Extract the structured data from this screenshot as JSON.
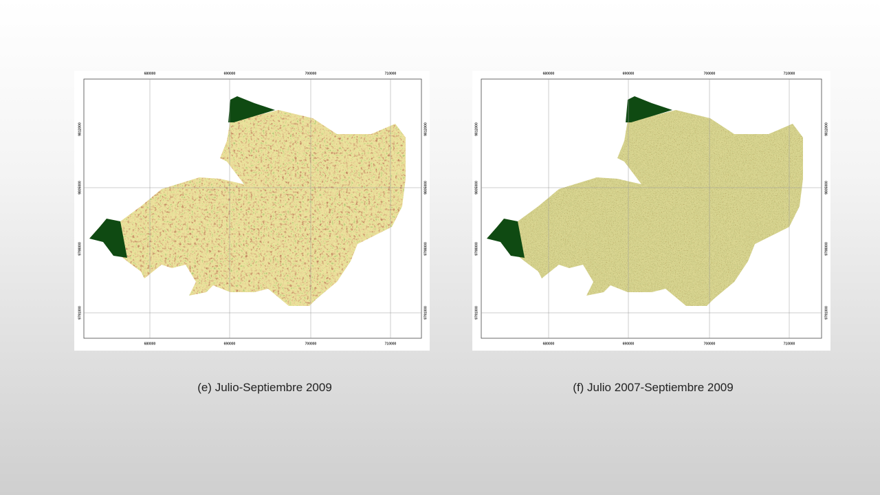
{
  "panels": [
    {
      "caption": "(e) Julio-Septiembre 2009",
      "map": {
        "x_labels": [
          "680000",
          "690000",
          "700000",
          "710000"
        ],
        "y_labels": [
          "9812000",
          "9805000",
          "9798000",
          "9791000"
        ]
      }
    },
    {
      "caption": "(f) Julio 2007-Septiembre 2009",
      "map": {
        "x_labels": [
          "680000",
          "690000",
          "700000",
          "710000"
        ],
        "y_labels": [
          "9812000",
          "9805000",
          "9798000",
          "9791000"
        ]
      }
    }
  ]
}
